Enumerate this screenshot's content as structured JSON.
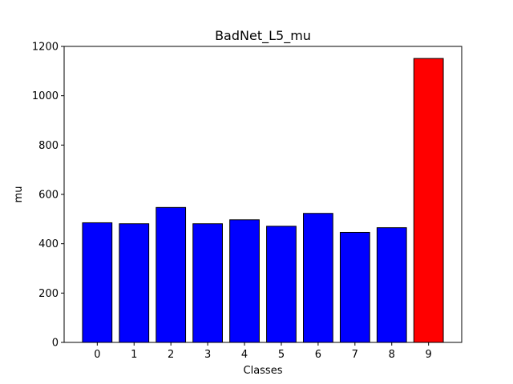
{
  "chart_data": {
    "type": "bar",
    "title": "BadNet_L5_mu",
    "xlabel": "Classes",
    "ylabel": "mu",
    "categories": [
      "0",
      "1",
      "2",
      "3",
      "4",
      "5",
      "6",
      "7",
      "8",
      "9"
    ],
    "values": [
      485,
      481,
      547,
      481,
      497,
      471,
      523,
      446,
      465,
      1151
    ],
    "bar_colors": [
      "#0000ff",
      "#0000ff",
      "#0000ff",
      "#0000ff",
      "#0000ff",
      "#0000ff",
      "#0000ff",
      "#0000ff",
      "#0000ff",
      "#ff0000"
    ],
    "edge_color": "#000000",
    "ylim": [
      0,
      1200
    ],
    "yticks": [
      0,
      200,
      400,
      600,
      800,
      1000,
      1200
    ],
    "grid": false
  }
}
